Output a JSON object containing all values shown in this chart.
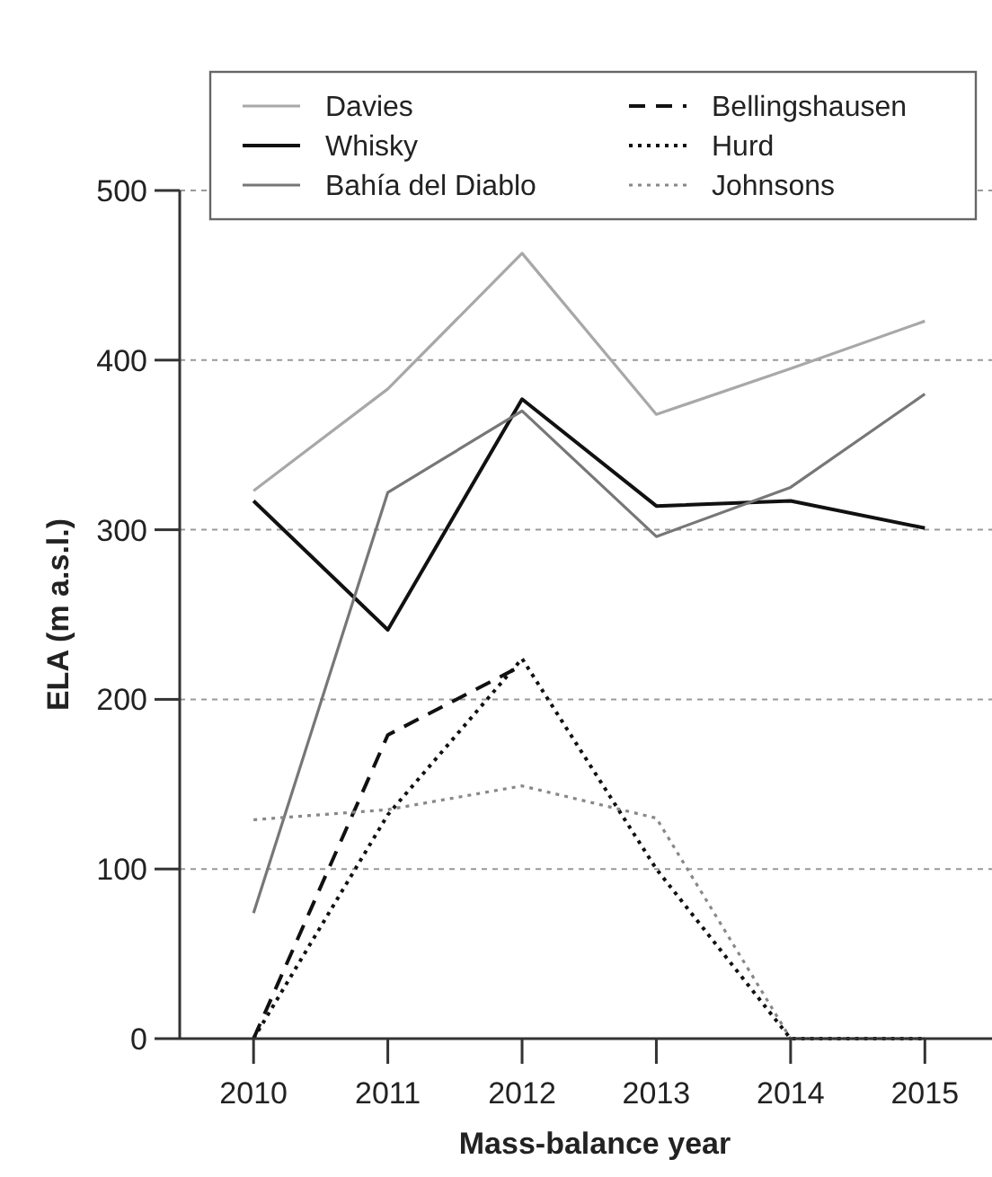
{
  "chart_data": {
    "type": "line",
    "xlabel": "Mass-balance year",
    "ylabel": "ELA (m a.s.l.)",
    "x": [
      2010,
      2011,
      2012,
      2013,
      2014,
      2015
    ],
    "xlim": [
      2009.45,
      2015.5
    ],
    "ylim": [
      0,
      500
    ],
    "xticks": [
      2010,
      2011,
      2012,
      2013,
      2014,
      2015
    ],
    "yticks": [
      0,
      100,
      200,
      300,
      400,
      500
    ],
    "grid": "y",
    "legend": "top",
    "marker": "none",
    "series": [
      {
        "name": "Davies",
        "color": "#a8a8a8",
        "line_style": "solid",
        "values": [
          323,
          383,
          463,
          368,
          395,
          423
        ]
      },
      {
        "name": "Whisky",
        "color": "#111111",
        "line_style": "solid",
        "values": [
          317,
          241,
          377,
          314,
          317,
          301
        ]
      },
      {
        "name": "Bahía del Diablo",
        "color": "#777777",
        "line_style": "solid",
        "values": [
          74,
          322,
          370,
          296,
          325,
          380
        ]
      },
      {
        "name": "Bellingshausen",
        "color": "#111111",
        "line_style": "dashed",
        "values": [
          0,
          179,
          220,
          null,
          null,
          null
        ]
      },
      {
        "name": "Hurd",
        "color": "#111111",
        "line_style": "dotted",
        "values": [
          0,
          132,
          224,
          100,
          0,
          0
        ]
      },
      {
        "name": "Johnsons",
        "color": "#888888",
        "line_style": "dotted",
        "values": [
          129,
          135,
          149,
          130,
          0,
          0
        ]
      }
    ]
  }
}
